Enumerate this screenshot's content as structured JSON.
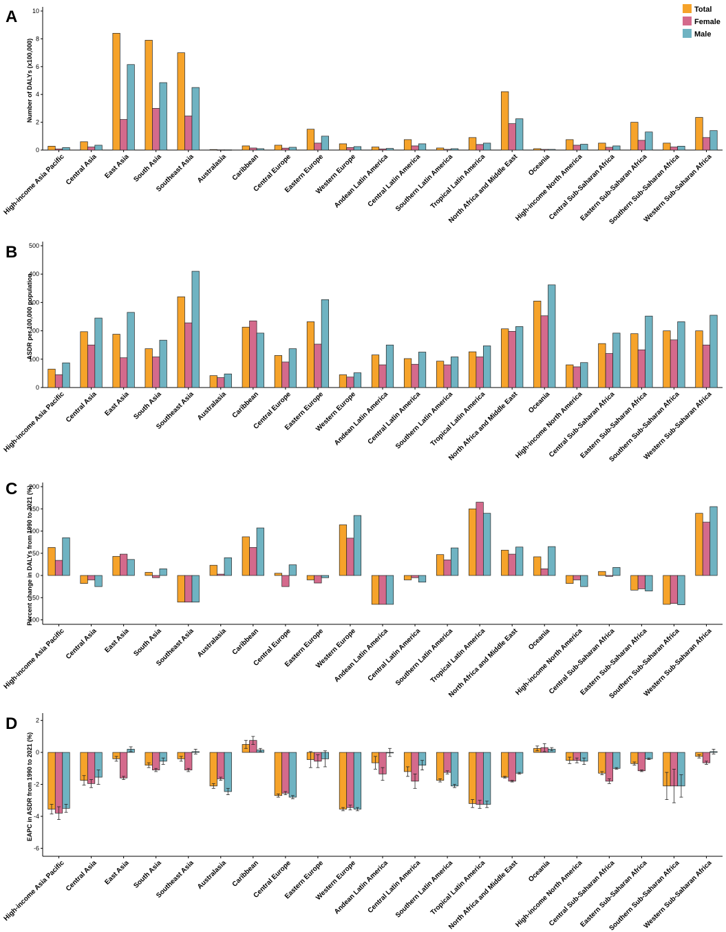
{
  "colors": {
    "Total": "#F6A32A",
    "Female": "#D46A8C",
    "Male": "#6FB3C2"
  },
  "legend": [
    "Total",
    "Female",
    "Male"
  ],
  "chart_data": [
    {
      "type": "bar",
      "panel": "A",
      "ylabel": "Number of DALYs (x100,000)",
      "ylim": [
        0,
        10
      ],
      "yticks": [
        0,
        2,
        4,
        6,
        8,
        10
      ],
      "categories": [
        "High-income Asia Pacific",
        "Central Asia",
        "East Asia",
        "South Asia",
        "Southeast Asia",
        "Australasia",
        "Caribbean",
        "Central Europe",
        "Eastern Europe",
        "Western Europe",
        "Andean Latin America",
        "Central Latin America",
        "Southern Latin America",
        "Tropical Latin America",
        "North Africa and Middle East",
        "Oceania",
        "High-income North America",
        "Central Sub-Saharan Africa",
        "Eastern Sub-Saharan Africa",
        "Southern Sub-Saharan Africa",
        "Western Sub-Saharan Africa"
      ],
      "series": [
        {
          "name": "Total",
          "values": [
            0.28,
            0.6,
            8.4,
            7.9,
            7.0,
            0.04,
            0.3,
            0.35,
            1.5,
            0.45,
            0.22,
            0.75,
            0.15,
            0.9,
            4.2,
            0.1,
            0.75,
            0.5,
            2.0,
            0.5,
            2.35
          ]
        },
        {
          "name": "Female",
          "values": [
            0.08,
            0.22,
            2.2,
            3.0,
            2.45,
            0.02,
            0.15,
            0.14,
            0.5,
            0.18,
            0.08,
            0.3,
            0.05,
            0.4,
            1.9,
            0.05,
            0.35,
            0.2,
            0.7,
            0.22,
            0.9
          ]
        },
        {
          "name": "Male",
          "values": [
            0.18,
            0.35,
            6.15,
            4.85,
            4.5,
            0.02,
            0.1,
            0.2,
            1.0,
            0.25,
            0.12,
            0.45,
            0.1,
            0.5,
            2.25,
            0.05,
            0.42,
            0.3,
            1.3,
            0.28,
            1.4
          ]
        }
      ]
    },
    {
      "type": "bar",
      "panel": "B",
      "ylabel": "ASDR per 100,000 population",
      "ylim": [
        0,
        500
      ],
      "yticks": [
        0,
        100,
        200,
        300,
        400,
        500
      ],
      "categories": [
        "High-income Asia Pacific",
        "Central Asia",
        "East Asia",
        "South Asia",
        "Southeast Asia",
        "Australasia",
        "Caribbean",
        "Central Europe",
        "Eastern Europe",
        "Western Europe",
        "Andean Latin America",
        "Central Latin America",
        "Southern Latin America",
        "Tropical Latin America",
        "North Africa and Middle East",
        "Oceania",
        "High-income North America",
        "Central Sub-Saharan Africa",
        "Eastern Sub-Saharan Africa",
        "Southern Sub-Saharan Africa",
        "Western Sub-Saharan Africa"
      ],
      "series": [
        {
          "name": "Total",
          "values": [
            65,
            197,
            188,
            137,
            320,
            42,
            213,
            113,
            232,
            45,
            115,
            102,
            93,
            126,
            207,
            305,
            80,
            155,
            190,
            200,
            200
          ]
        },
        {
          "name": "Female",
          "values": [
            45,
            150,
            105,
            108,
            228,
            35,
            235,
            90,
            153,
            37,
            80,
            82,
            80,
            108,
            198,
            253,
            73,
            120,
            133,
            168,
            150
          ]
        },
        {
          "name": "Male",
          "values": [
            87,
            245,
            265,
            167,
            410,
            48,
            192,
            137,
            310,
            52,
            150,
            125,
            108,
            147,
            215,
            362,
            88,
            192,
            252,
            232,
            255
          ]
        }
      ]
    },
    {
      "type": "bar",
      "panel": "C",
      "ylabel": "Percent change in DALYs from 1990 to 2021 (%)",
      "ylim": [
        -110,
        200
      ],
      "yticks": [
        -100,
        -50,
        0,
        50,
        100,
        150,
        200
      ],
      "categories": [
        "High-income Asia Pacific",
        "Central Asia",
        "East Asia",
        "South Asia",
        "Southeast Asia",
        "Australasia",
        "Caribbean",
        "Central Europe",
        "Eastern Europe",
        "Western Europe",
        "Andean Latin America",
        "Central Latin America",
        "Southern Latin America",
        "Tropical Latin America",
        "North Africa and Middle East",
        "Oceania",
        "High-income North America",
        "Central Sub-Saharan Africa",
        "Eastern Sub-Saharan Africa",
        "Southern Sub-Saharan Africa",
        "Western Sub-Saharan Africa"
      ],
      "series": [
        {
          "name": "Total",
          "values": [
            63,
            -18,
            43,
            7,
            -60,
            23,
            87,
            5,
            -10,
            114,
            -65,
            -10,
            47,
            150,
            57,
            42,
            -18,
            9,
            -33,
            -65,
            140
          ]
        },
        {
          "name": "Female",
          "values": [
            34,
            -10,
            48,
            -5,
            -60,
            3,
            63,
            -25,
            -17,
            84,
            -65,
            -5,
            35,
            165,
            48,
            15,
            -10,
            -2,
            -30,
            -63,
            120
          ]
        },
        {
          "name": "Male",
          "values": [
            85,
            -25,
            36,
            15,
            -60,
            40,
            107,
            24,
            -5,
            135,
            -65,
            -15,
            62,
            140,
            64,
            65,
            -25,
            18,
            -35,
            -66,
            155
          ]
        }
      ]
    },
    {
      "type": "bar",
      "panel": "D",
      "ylabel": "EAPC in ASDR from 1990 to 2021 (%)",
      "ylim": [
        -6.5,
        2.2
      ],
      "yticks": [
        -6,
        -4,
        -2,
        0,
        2
      ],
      "error_bars": true,
      "categories": [
        "High-income Asia Pacific",
        "Central Asia",
        "East Asia",
        "South Asia",
        "Southeast Asia",
        "Australasia",
        "Caribbean",
        "Central Europe",
        "Eastern Europe",
        "Western Europe",
        "Andean Latin America",
        "Central Latin America",
        "Southern Latin America",
        "Tropical Latin America",
        "North Africa and Middle East",
        "Oceania",
        "High-income North America",
        "Central Sub-Saharan Africa",
        "Eastern Sub-Saharan Africa",
        "Southern Sub-Saharan Africa",
        "Western Sub-Saharan Africa"
      ],
      "series": [
        {
          "name": "Total",
          "values": [
            -3.55,
            -1.75,
            -0.4,
            -0.8,
            -0.4,
            -2.1,
            0.5,
            -2.7,
            -0.45,
            -3.55,
            -0.65,
            -1.2,
            -1.75,
            -3.2,
            -1.55,
            0.25,
            -0.5,
            -1.3,
            -0.7,
            -2.1,
            -0.25
          ],
          "err": [
            0.3,
            0.3,
            0.15,
            0.15,
            0.15,
            0.15,
            0.25,
            0.1,
            0.5,
            0.1,
            0.4,
            0.3,
            0.1,
            0.25,
            0.05,
            0.15,
            0.2,
            0.1,
            0.1,
            0.85,
            0.1
          ]
        },
        {
          "name": "Female",
          "values": [
            -3.8,
            -1.95,
            -1.6,
            -1.1,
            -1.1,
            -1.65,
            0.75,
            -2.55,
            -0.55,
            -3.45,
            -1.35,
            -1.8,
            -1.25,
            -3.25,
            -1.8,
            0.3,
            -0.5,
            -1.8,
            -1.15,
            -2.1,
            -0.65
          ],
          "err": [
            0.4,
            0.25,
            0.1,
            0.1,
            0.1,
            0.1,
            0.25,
            0.1,
            0.4,
            0.15,
            0.4,
            0.45,
            0.1,
            0.25,
            0.05,
            0.25,
            0.15,
            0.15,
            0.05,
            1.05,
            0.1
          ]
        },
        {
          "name": "Male",
          "values": [
            -3.5,
            -1.55,
            0.2,
            -0.55,
            0.05,
            -2.45,
            0.15,
            -2.8,
            -0.4,
            -3.55,
            0.0,
            -0.8,
            -2.1,
            -3.25,
            -1.3,
            0.2,
            -0.55,
            -1.0,
            -0.4,
            -2.1,
            0.05
          ],
          "err": [
            0.25,
            0.45,
            0.15,
            0.2,
            0.15,
            0.2,
            0.1,
            0.1,
            0.5,
            0.1,
            0.25,
            0.3,
            0.1,
            0.2,
            0.05,
            0.1,
            0.2,
            0.05,
            0.05,
            0.7,
            0.15
          ]
        }
      ]
    }
  ]
}
